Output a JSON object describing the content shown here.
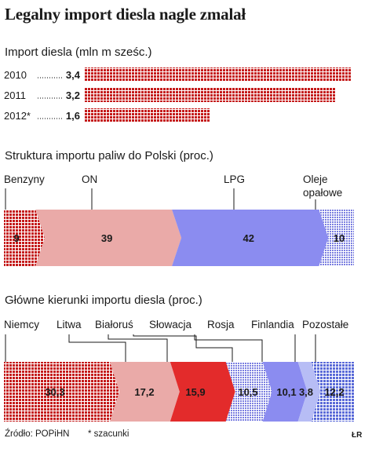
{
  "title": "Legalny import diesla nagle zmalał",
  "colors": {
    "red_pattern": "#c41a1a",
    "pink": "#eaaaa8",
    "red": "#e32b2b",
    "blue": "#8b8cf0",
    "light_blue": "#b7bdf5",
    "lilac_pattern": "#7a7ee0",
    "blue_pattern": "#5a6ad8"
  },
  "chart_data": [
    {
      "type": "bar",
      "title": "Import diesla (mln m sześc.)",
      "categories": [
        "2010",
        "2011",
        "2012*"
      ],
      "values": [
        3.4,
        3.2,
        1.6
      ],
      "value_labels": [
        "3,4",
        "3,2",
        "1,6"
      ]
    },
    {
      "type": "bar",
      "stacked": true,
      "title": "Struktura importu paliw do Polski (proc.)",
      "categories": [
        "Benzyny",
        "ON",
        "LPG",
        "Oleje opałowe"
      ],
      "values": [
        9,
        39,
        42,
        10
      ],
      "value_labels": [
        "9",
        "39",
        "42",
        "10"
      ]
    },
    {
      "type": "bar",
      "stacked": true,
      "title": "Główne kierunki importu diesla (proc.)",
      "categories": [
        "Niemcy",
        "Litwa",
        "Białoruś",
        "Słowacja",
        "Rosja",
        "Finlandia",
        "Pozostałe"
      ],
      "values": [
        30.3,
        17.2,
        15.9,
        10.5,
        10.1,
        3.8,
        12.2
      ],
      "value_labels": [
        "30,3",
        "17,2",
        "15,9",
        "10,5",
        "10,1",
        "3,8",
        "12,2"
      ]
    }
  ],
  "footer": {
    "source": "Źródło: POPiHN",
    "note": "* szacunki",
    "credit": "ŁR"
  }
}
